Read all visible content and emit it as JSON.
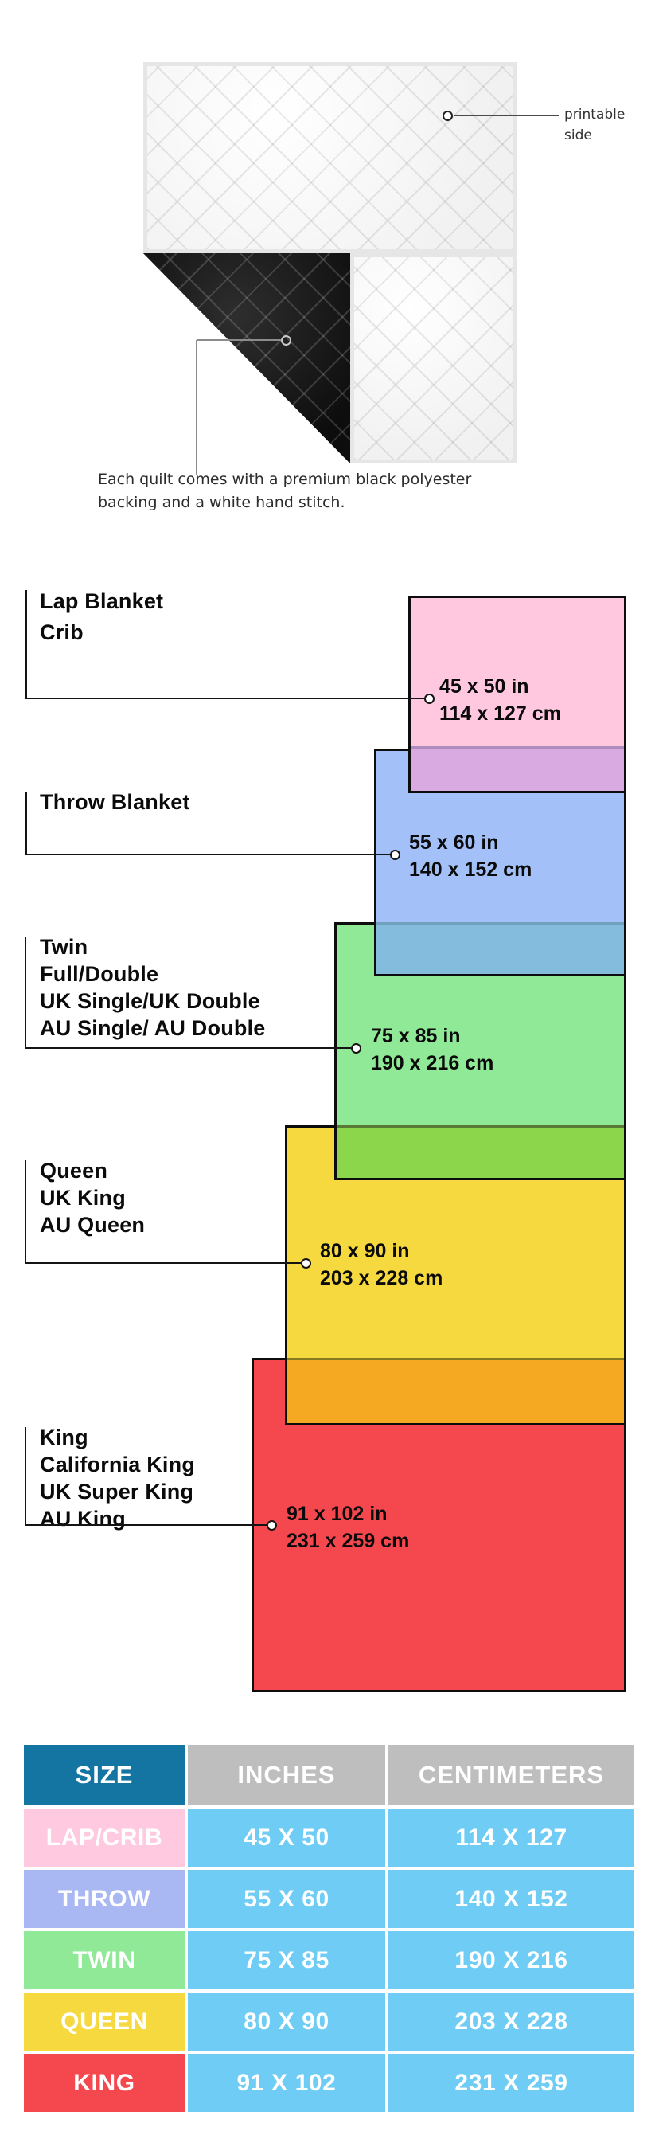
{
  "colors": {
    "header_size_bg": "#1474A2",
    "header_metric_bg": "#BEBEBE",
    "table_value_bg": "#6FCDF5",
    "callout_line": "#141414"
  },
  "quilt": {
    "printable_callout": [
      "printable",
      "side"
    ],
    "caption": [
      "Each quilt comes with a premium black polyester",
      "backing and a white hand stitch."
    ]
  },
  "diagram": {
    "blankets": [
      {
        "names": [
          "Lap Blanket",
          "Crib"
        ],
        "inches": "45 x 50 in",
        "centimeters": "114 x 127 cm",
        "fill": "#FFC8DE",
        "overlap_fill": "#D9A9E2"
      },
      {
        "names": [
          "Throw Blanket"
        ],
        "inches": "55 x 60 in",
        "centimeters": "140 x 152 cm",
        "fill": "#A3C1F8",
        "overlap_fill": "#84BCDD"
      },
      {
        "names": [
          "Twin",
          "Full/Double",
          "UK Single/UK Double",
          "AU Single/ AU Double"
        ],
        "inches": "75 x 85 in",
        "centimeters": "190 x 216 cm",
        "fill": "#8FE996",
        "overlap_fill": "#8CD64C"
      },
      {
        "names": [
          "Queen",
          "UK King",
          "AU Queen"
        ],
        "inches": "80 x 90 in",
        "centimeters": "203 x 228 cm",
        "fill": "#F5D93F",
        "overlap_fill": "#F5A923"
      },
      {
        "names": [
          "King",
          "California King",
          "UK Super King",
          "AU King"
        ],
        "inches": "91 x 102 in",
        "centimeters": "231 x 259 cm",
        "fill": "#F4474E",
        "overlap_fill": null
      }
    ]
  },
  "table": {
    "headers": [
      "SIZE",
      "INCHES",
      "CENTIMETERS"
    ],
    "rows": [
      {
        "size": "LAP/CRIB",
        "inches": "45 X 50",
        "centimeters": "114 X 127",
        "label_bg": "#FFC9E0"
      },
      {
        "size": "THROW",
        "inches": "55 X 60",
        "centimeters": "140 X 152",
        "label_bg": "#A9B8F2"
      },
      {
        "size": "TWIN",
        "inches": "75 X 85",
        "centimeters": "190 X 216",
        "label_bg": "#8FE996"
      },
      {
        "size": "QUEEN",
        "inches": "80 X 90",
        "centimeters": "203 X 228",
        "label_bg": "#F5D93F"
      },
      {
        "size": "KING",
        "inches": "91 X 102",
        "centimeters": "231 X 259",
        "label_bg": "#F4474E"
      }
    ]
  }
}
